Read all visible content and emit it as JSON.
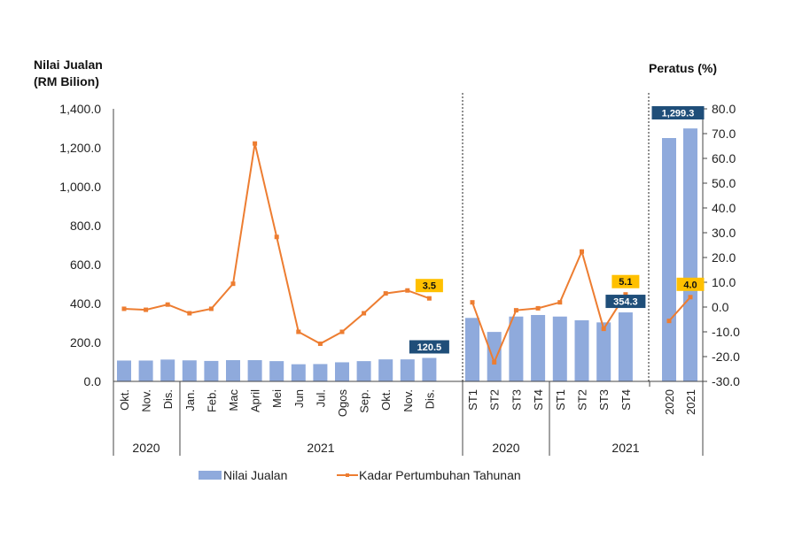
{
  "chart_data": {
    "type": "bar+line",
    "left_axis": {
      "title_line1": "Nilai Jualan",
      "title_line2": "(RM Bilion)",
      "range": [
        0,
        1400
      ],
      "ticks": [
        "0.0",
        "200.0",
        "400.0",
        "600.0",
        "800.0",
        "1,000.0",
        "1,200.0",
        "1,400.0"
      ]
    },
    "right_axis": {
      "title": "Peratus (%)",
      "range": [
        -30,
        80
      ],
      "ticks": [
        "-30.0",
        "-20.0",
        "-10.0",
        "0.0",
        "10.0",
        "20.0",
        "30.0",
        "40.0",
        "50.0",
        "60.0",
        "70.0",
        "80.0"
      ]
    },
    "groups": [
      {
        "label": "2020",
        "categories": [
          "Okt.",
          "Nov.",
          "Dis."
        ]
      },
      {
        "label": "2021",
        "categories": [
          "Jan.",
          "Feb.",
          "Mac",
          "April",
          "Mei",
          "Jun",
          "Jul.",
          "Ogos",
          "Sep.",
          "Okt.",
          "Nov.",
          "Dis."
        ]
      },
      {
        "label": "2020",
        "categories": [
          "ST1",
          "ST2",
          "ST3",
          "ST4"
        ]
      },
      {
        "label": "2021",
        "categories": [
          "ST1",
          "ST2",
          "ST3",
          "ST4"
        ]
      },
      {
        "label": "",
        "categories": [
          "2020",
          "2021"
        ]
      }
    ],
    "series": [
      {
        "name": "Nilai Jualan",
        "type": "bar",
        "axis": "left",
        "color": "#8FAADC",
        "values": [
          107,
          107,
          112,
          108,
          105,
          109,
          109,
          104,
          88,
          89,
          98,
          104,
          113,
          113,
          120.5,
          326,
          254,
          333,
          341,
          333,
          314,
          303,
          354.3,
          1250,
          1299.3
        ]
      },
      {
        "name": "Kadar Pertumbuhan Tahunan",
        "type": "line",
        "axis": "right",
        "color": "#ED7D31",
        "values": [
          -0.7,
          -1.1,
          1.0,
          -2.5,
          -0.7,
          9.4,
          66.0,
          28.3,
          -10.0,
          -14.8,
          -10.0,
          -2.5,
          5.5,
          6.7,
          3.5,
          1.9,
          -22.3,
          -1.3,
          -0.5,
          1.9,
          22.4,
          -8.8,
          5.1,
          -5.6,
          4.0
        ]
      }
    ],
    "data_labels": [
      {
        "series": "Nilai Jualan",
        "index": 14,
        "text": "120.5",
        "bg": "#1F4E79",
        "fg": "#ffffff"
      },
      {
        "series": "Kadar Pertumbuhan Tahunan",
        "index": 14,
        "text": "3.5",
        "bg": "#FFC000",
        "fg": "#111111"
      },
      {
        "series": "Nilai Jualan",
        "index": 22,
        "text": "354.3",
        "bg": "#1F4E79",
        "fg": "#ffffff"
      },
      {
        "series": "Kadar Pertumbuhan Tahunan",
        "index": 22,
        "text": "5.1",
        "bg": "#FFC000",
        "fg": "#111111"
      },
      {
        "series": "Nilai Jualan",
        "index": 24,
        "text": "1,299.3",
        "bg": "#1F4E79",
        "fg": "#ffffff"
      },
      {
        "series": "Kadar Pertumbuhan Tahunan",
        "index": 24,
        "text": "4.0",
        "bg": "#FFC000",
        "fg": "#111111"
      }
    ],
    "legend": {
      "position": "bottom",
      "items": [
        "Nilai Jualan",
        "Kadar Pertumbuhan Tahunan"
      ]
    },
    "grid": false
  }
}
